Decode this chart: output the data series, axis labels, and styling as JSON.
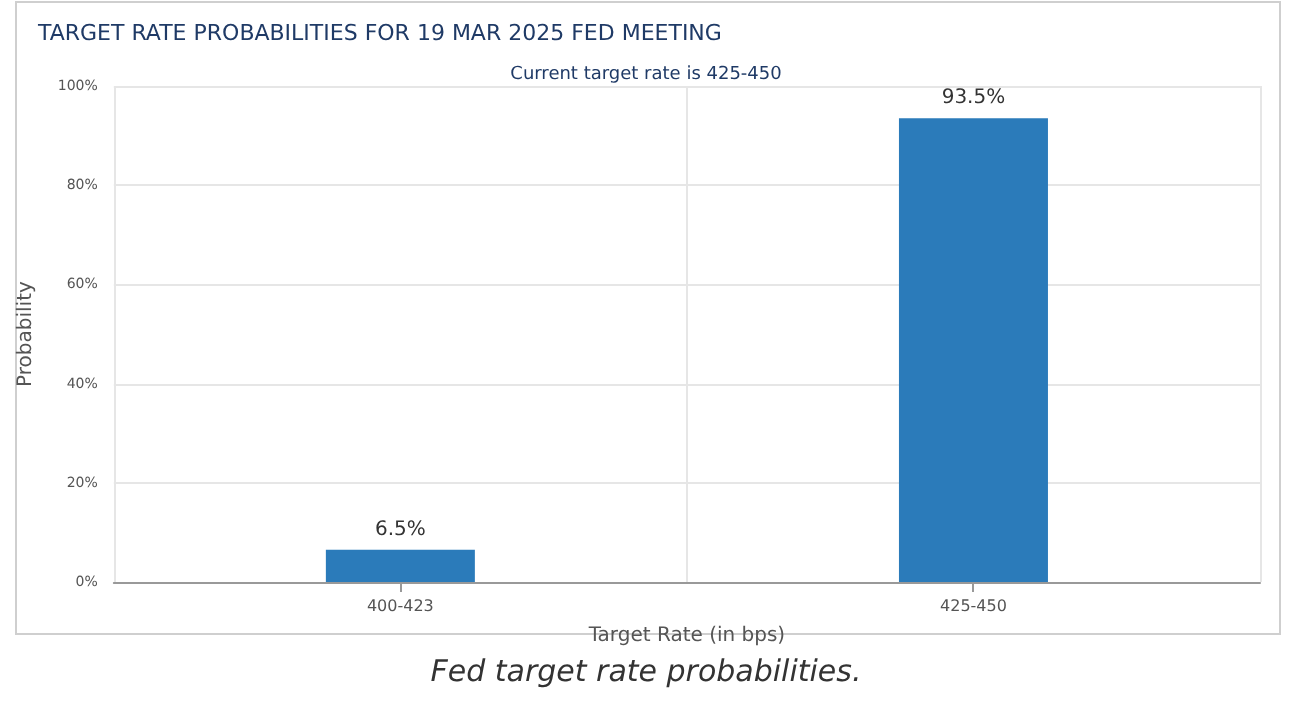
{
  "chart_data": {
    "type": "bar",
    "title": "TARGET RATE PROBABILITIES FOR 19 MAR 2025 FED MEETING",
    "subtitle": "Current target rate is 425-450",
    "xlabel": "Target Rate (in bps)",
    "ylabel": "Probability",
    "categories": [
      "400-423",
      "425-450"
    ],
    "values": [
      6.5,
      93.5
    ],
    "value_labels": [
      "6.5%",
      "93.5%"
    ],
    "color": "#2b7bba",
    "ylim": [
      0,
      100
    ],
    "yticks": [
      {
        "value": 0,
        "label": "0%"
      },
      {
        "value": 20,
        "label": "20%"
      },
      {
        "value": 40,
        "label": "40%"
      },
      {
        "value": 60,
        "label": "60%"
      },
      {
        "value": 80,
        "label": "80%"
      },
      {
        "value": 100,
        "label": "100%"
      }
    ],
    "grid": true,
    "annotations": [
      "Fed target rate probabilities."
    ]
  }
}
